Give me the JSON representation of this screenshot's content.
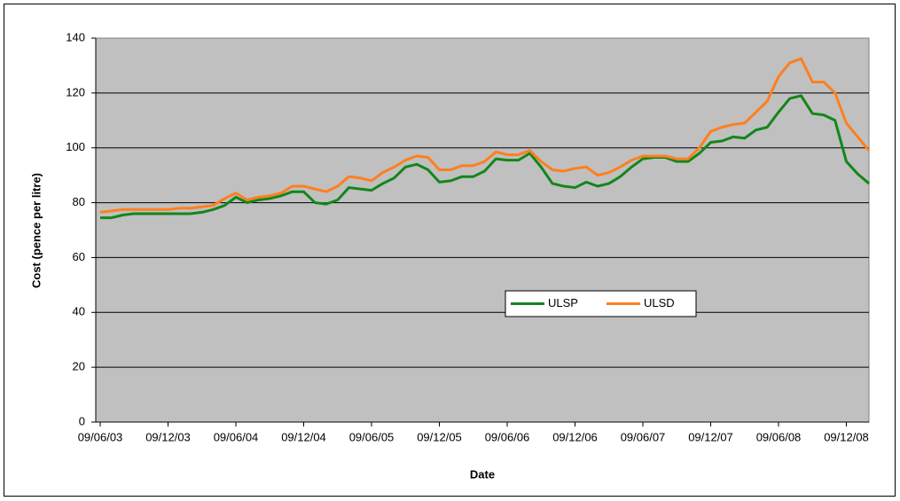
{
  "chart_data": {
    "type": "line",
    "ylabel": "Cost (pence per litre)",
    "xlabel": "Date",
    "categories": [
      "09/06/03",
      null,
      null,
      null,
      null,
      null,
      "09/12/03",
      null,
      null,
      null,
      null,
      null,
      "09/06/04",
      null,
      null,
      null,
      null,
      null,
      "09/12/04",
      null,
      null,
      null,
      null,
      null,
      "09/06/05",
      null,
      null,
      null,
      null,
      null,
      "09/12/05",
      null,
      null,
      null,
      null,
      null,
      "09/06/06",
      null,
      null,
      null,
      null,
      null,
      "09/12/06",
      null,
      null,
      null,
      null,
      null,
      "09/06/07",
      null,
      null,
      null,
      null,
      null,
      "09/12/07",
      null,
      null,
      null,
      null,
      null,
      "09/06/08",
      null,
      null,
      null,
      null,
      null,
      "09/12/08",
      null,
      null
    ],
    "series": [
      {
        "name": "ULSP",
        "color": "#14861a",
        "values": [
          74.5,
          74.5,
          75.5,
          76,
          76,
          76,
          76,
          76,
          76,
          76.5,
          77.5,
          79,
          82,
          80,
          81,
          81.5,
          82.5,
          84,
          84,
          80,
          79.5,
          81,
          85.5,
          85,
          84.5,
          87,
          89,
          93,
          94,
          92,
          87.5,
          88,
          89.5,
          89.5,
          91.5,
          96,
          95.5,
          95.5,
          98,
          93,
          87,
          86,
          85.5,
          87.5,
          86,
          87,
          89.5,
          93,
          96,
          96.5,
          96.5,
          95,
          95,
          98,
          102,
          102.5,
          104,
          103.5,
          106.5,
          107.5,
          113,
          118,
          119,
          112.5,
          112,
          110,
          95,
          90.5,
          87
        ]
      },
      {
        "name": "ULSD",
        "color": "#ff7f1e",
        "values": [
          76.5,
          77,
          77.5,
          77.5,
          77.5,
          77.5,
          77.5,
          78,
          78,
          78.5,
          79,
          81.5,
          83.5,
          81,
          82,
          82.5,
          83.5,
          86,
          86,
          85,
          84,
          86,
          89.5,
          89,
          88,
          91,
          93,
          95.5,
          97,
          96.5,
          92,
          92,
          93.5,
          93.5,
          95,
          98.5,
          97.5,
          97.5,
          99,
          95,
          92,
          91.5,
          92.5,
          93,
          90,
          91,
          93,
          95.5,
          97,
          97,
          97,
          96,
          96,
          100,
          106,
          107.5,
          108.5,
          109,
          113,
          117,
          126,
          131,
          132.5,
          124,
          124,
          120,
          109,
          104,
          99
        ]
      }
    ],
    "ylim": [
      0,
      140
    ],
    "yticks": [
      0,
      20,
      40,
      60,
      80,
      100,
      120,
      140
    ],
    "grid": true,
    "legend": "center"
  }
}
